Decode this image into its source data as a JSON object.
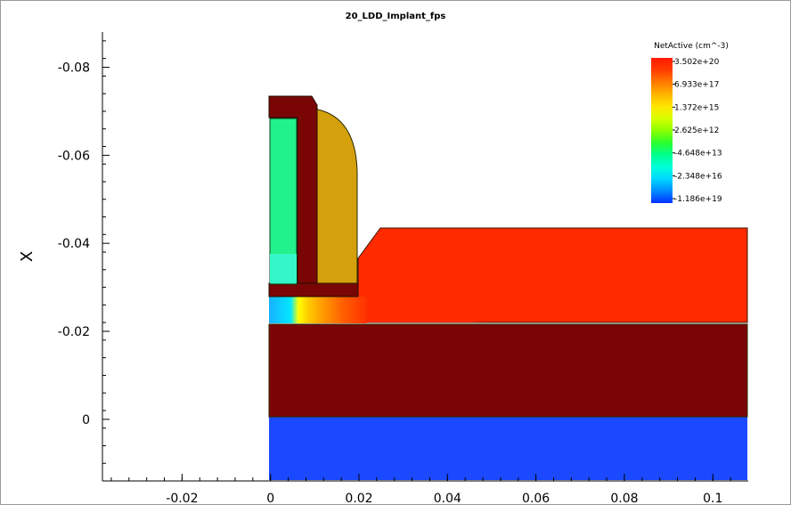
{
  "chart_data": {
    "type": "heatmap",
    "title": "20_LDD_Implant_fps",
    "ylabel": "X",
    "xlabel": "",
    "x_ticks": [
      "-0.02",
      "0",
      "0.02",
      "0.04",
      "0.06",
      "0.08",
      "0.1"
    ],
    "y_ticks": [
      "-0.08",
      "-0.06",
      "-0.04",
      "-0.02",
      "0"
    ],
    "xlim": [
      -0.038,
      0.108
    ],
    "ylim": [
      0.014,
      -0.088
    ],
    "colorbar": {
      "title": "NetActive (cm^-3)",
      "labels": [
        "3.502e+20",
        "6.933e+17",
        "1.372e+15",
        "2.625e+12",
        "-4.648e+13",
        "-2.348e+16",
        "-1.186e+19"
      ],
      "colors": [
        "#ff1a00",
        "#ff3c00",
        "#ff7a00",
        "#ffb300",
        "#ffe600",
        "#d8ff00",
        "#8cff00",
        "#2bff2b",
        "#00ff8c",
        "#00ffd8",
        "#00d8ff",
        "#008cff",
        "#0030ff"
      ]
    },
    "regions": [
      {
        "name": "substrate-blue",
        "value": "-1.186e+19",
        "color": "#1a49ff"
      },
      {
        "name": "substrate-dark",
        "color": "#7a0505"
      },
      {
        "name": "ldd-red",
        "value": "3.502e+20",
        "color": "#ff2a00"
      },
      {
        "name": "gate-green",
        "color": "#22f28c"
      },
      {
        "name": "spacer-gold",
        "color": "#d4a00c"
      },
      {
        "name": "gate-liner",
        "color": "#7a0505"
      }
    ]
  }
}
